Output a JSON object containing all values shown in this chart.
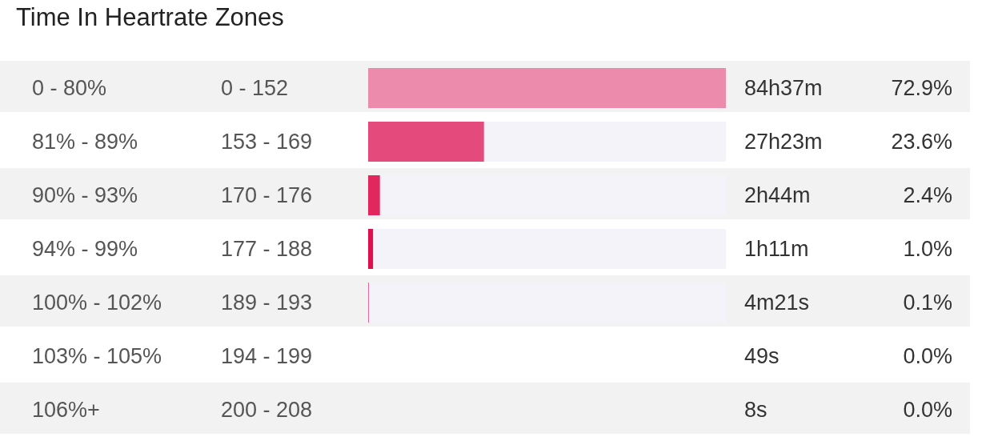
{
  "chart_data": {
    "type": "bar",
    "orientation": "horizontal",
    "title": "Time In Heartrate Zones",
    "categories": [
      "0 - 80%",
      "81% - 89%",
      "90% - 93%",
      "94% - 99%",
      "100% - 102%",
      "103% - 105%",
      "106%+"
    ],
    "values": [
      72.9,
      23.6,
      2.4,
      1.0,
      0.1,
      0.0,
      0.0
    ],
    "colors": [
      "#ec8bab",
      "#e54a7c",
      "#e2275f",
      "#e01050",
      "#e01050",
      "#e01050",
      "#e01050"
    ],
    "value_labels": [
      "72.9%",
      "23.6%",
      "2.4%",
      "1.0%",
      "0.1%",
      "0.0%",
      "0.0%"
    ],
    "xlim": [
      0,
      72.9
    ],
    "tick_labels": "y",
    "annotations": [
      "0 - 152",
      "153 - 169",
      "170 - 176",
      "177 - 188",
      "189 - 193",
      "194 - 199",
      "200 - 208",
      "84h37m",
      "27h23m",
      "2h44m",
      "1h11m",
      "4m21s",
      "49s",
      "8s"
    ]
  }
}
